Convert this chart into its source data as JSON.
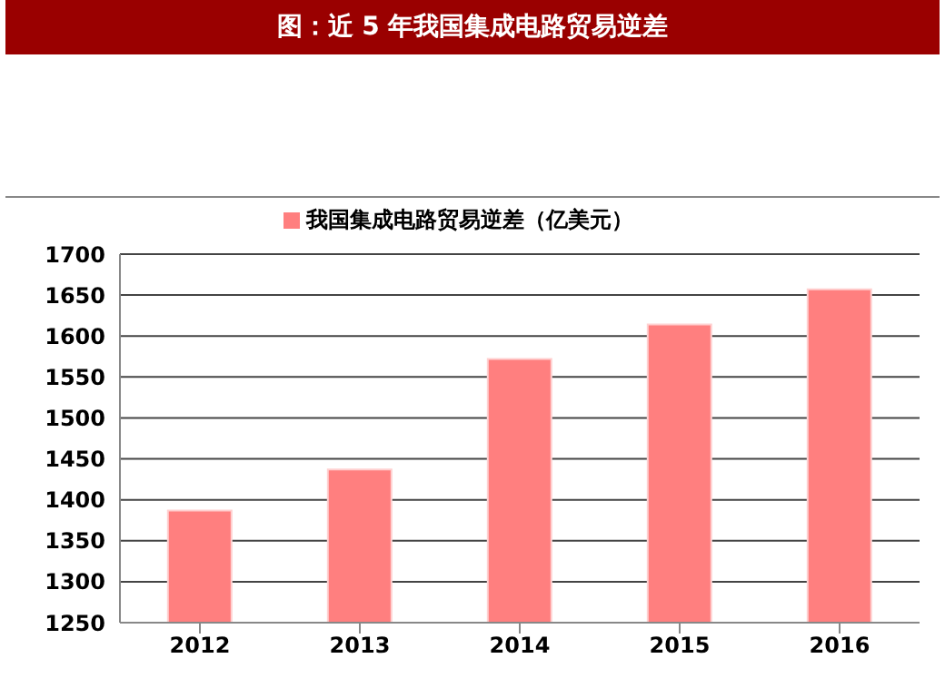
{
  "chart_data": {
    "type": "bar",
    "title": "图：近 5 年我国集成电路贸易逆差",
    "categories": [
      "2012",
      "2013",
      "2014",
      "2015",
      "2016"
    ],
    "series": [
      {
        "name": "我国集成电路贸易逆差（亿美元）",
        "color": "#ff7f7f",
        "values": [
          1387,
          1437,
          1572,
          1614,
          1657
        ]
      }
    ],
    "ylim": [
      1250,
      1700
    ],
    "yticks": [
      1250,
      1300,
      1350,
      1400,
      1450,
      1500,
      1550,
      1600,
      1650,
      1700
    ],
    "grid": "y",
    "legend": "top"
  }
}
